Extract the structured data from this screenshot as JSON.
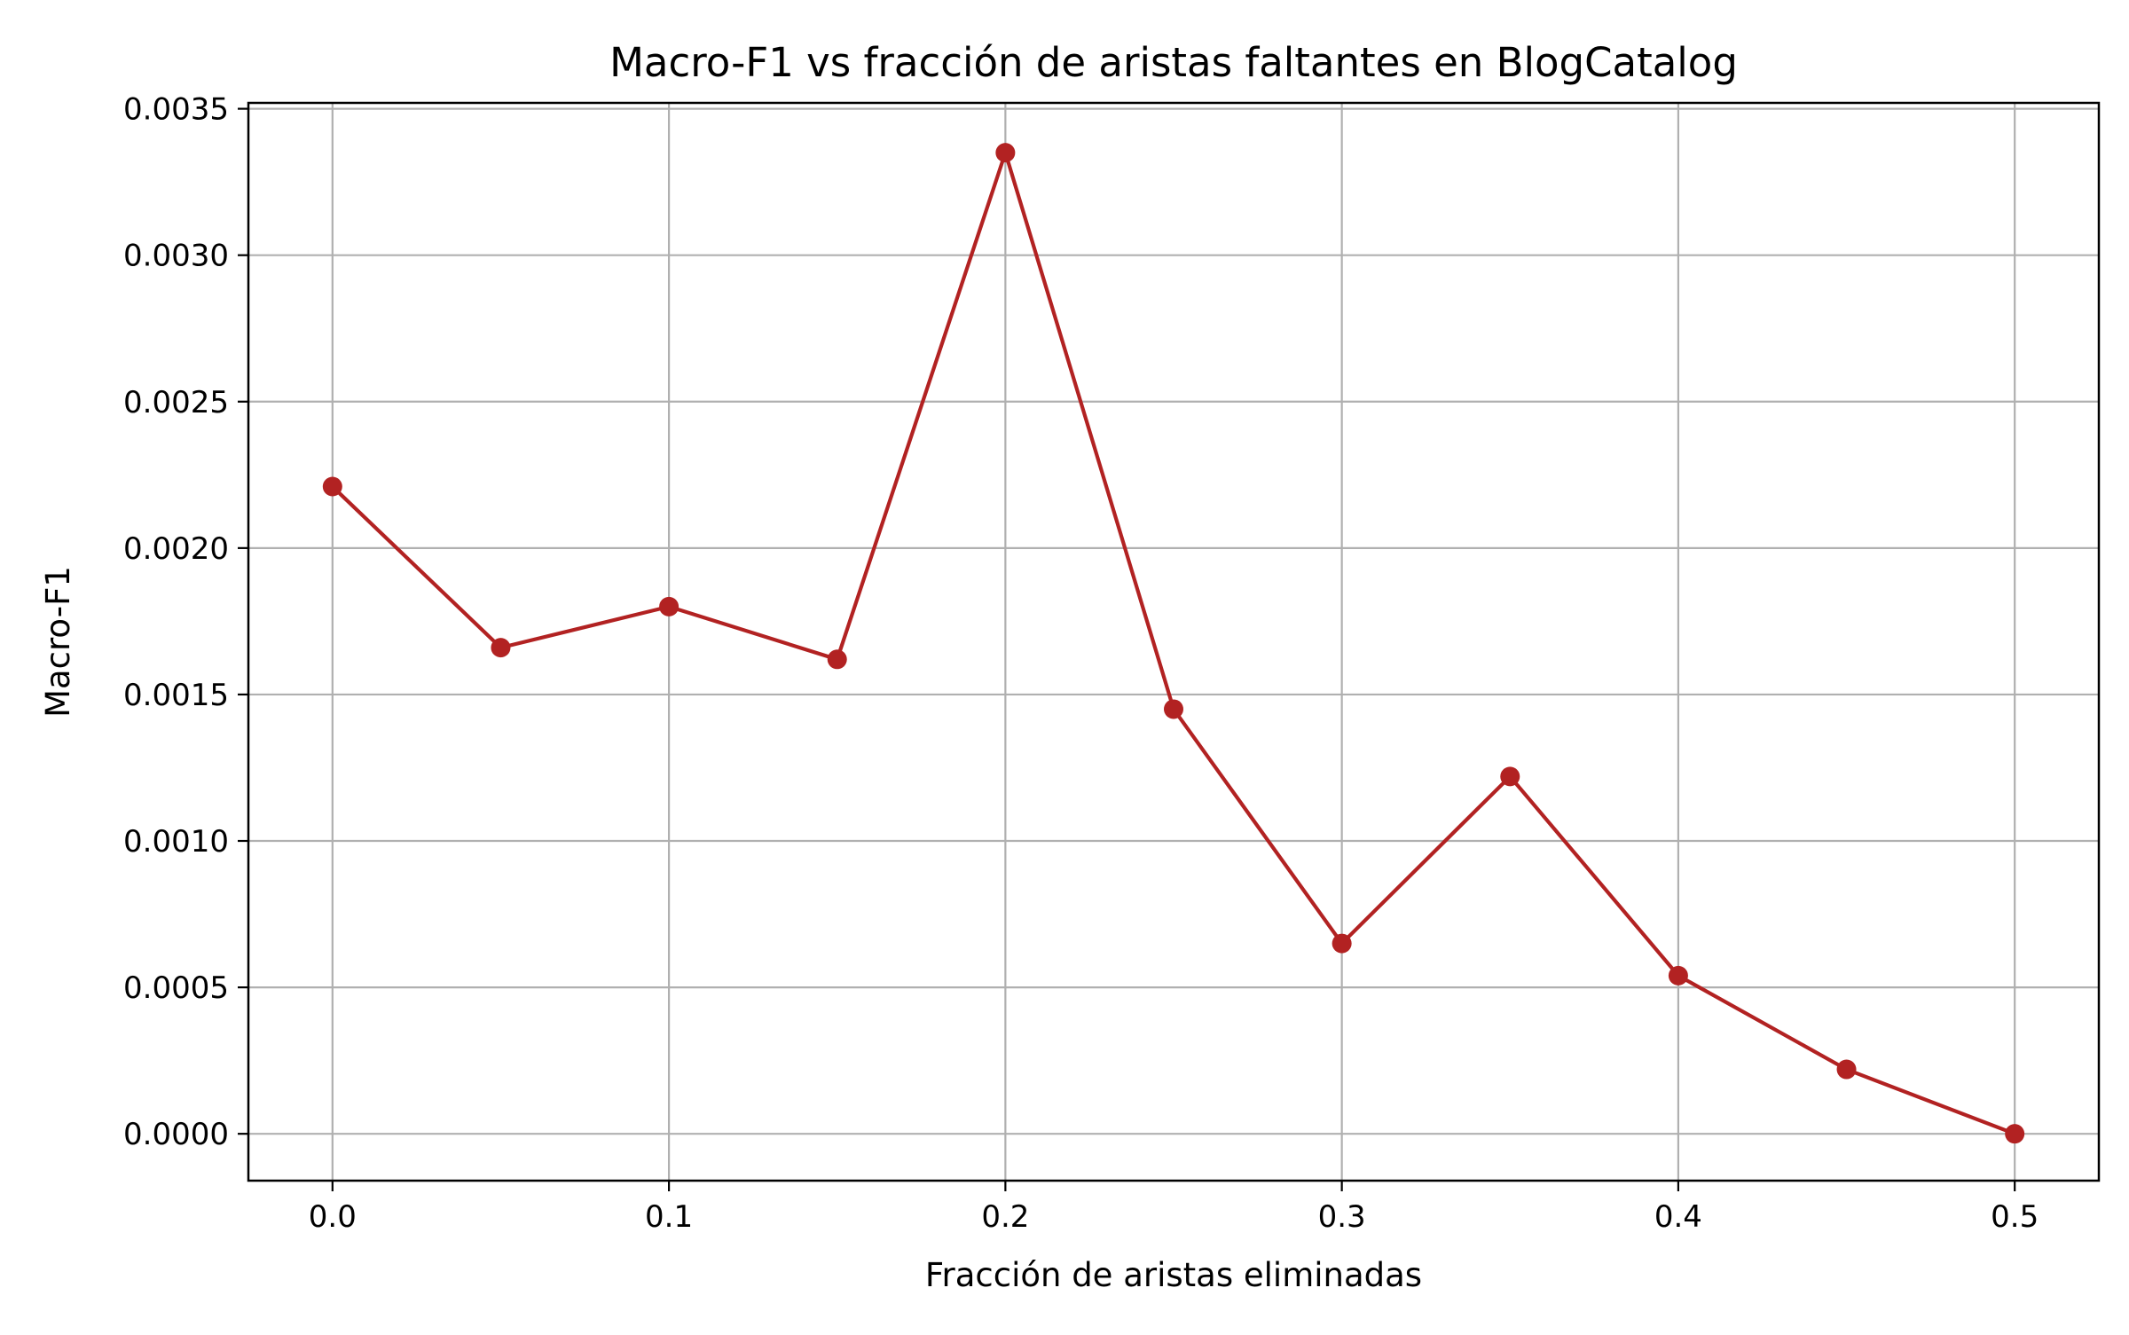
{
  "chart_data": {
    "type": "line",
    "title": "Macro-F1 vs fracción de aristas faltantes en BlogCatalog",
    "xlabel": "Fracción de aristas eliminadas",
    "ylabel": "Macro-F1",
    "x": [
      0.0,
      0.05,
      0.1,
      0.15,
      0.2,
      0.25,
      0.3,
      0.35,
      0.4,
      0.45,
      0.5
    ],
    "series": [
      {
        "values": [
          0.00221,
          0.00166,
          0.0018,
          0.00162,
          0.00335,
          0.00145,
          0.00065,
          0.00122,
          0.00054,
          0.00022,
          0.0
        ],
        "color": "#b22222",
        "marker": "circle"
      }
    ],
    "xlim": [
      -0.025,
      0.525
    ],
    "ylim": [
      -0.00016,
      0.00352
    ],
    "xticks": [
      0.0,
      0.1,
      0.2,
      0.3,
      0.4,
      0.5
    ],
    "xtick_labels": [
      "0.0",
      "0.1",
      "0.2",
      "0.3",
      "0.4",
      "0.5"
    ],
    "yticks": [
      0.0,
      0.0005,
      0.001,
      0.0015,
      0.002,
      0.0025,
      0.003,
      0.0035
    ],
    "ytick_labels": [
      "0.0000",
      "0.0005",
      "0.0010",
      "0.0015",
      "0.0020",
      "0.0025",
      "0.0030",
      "0.0035"
    ],
    "grid": true,
    "grid_color": "#b0b0b0",
    "legend": "none"
  }
}
